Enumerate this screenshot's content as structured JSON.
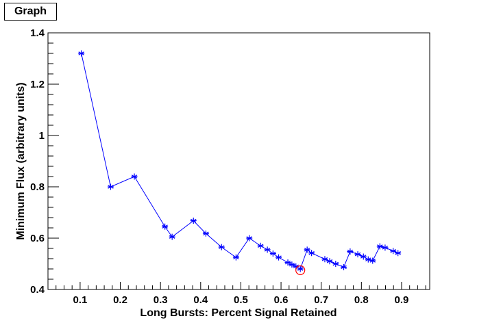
{
  "chart_data": {
    "type": "line",
    "title": "Graph",
    "xlabel": "Long Bursts: Percent Signal Retained",
    "ylabel": "Minimum Flux (arbitrary units)",
    "xlim": [
      0.02,
      0.97
    ],
    "ylim": [
      0.4,
      1.4
    ],
    "xticks": [
      "0.1",
      "0.2",
      "0.3",
      "0.4",
      "0.5",
      "0.6",
      "0.7",
      "0.8",
      "0.9"
    ],
    "yticks": [
      "0.4",
      "0.6",
      "0.8",
      "1",
      "1.2",
      "1.4"
    ],
    "grid": false,
    "series_color": "#0000ff",
    "highlight_color": "#ff0000",
    "marker": "asterisk",
    "x": [
      0.103,
      0.176,
      0.235,
      0.311,
      0.329,
      0.382,
      0.413,
      0.452,
      0.488,
      0.521,
      0.549,
      0.566,
      0.58,
      0.594,
      0.617,
      0.627,
      0.637,
      0.648,
      0.665,
      0.676,
      0.709,
      0.721,
      0.736,
      0.756,
      0.772,
      0.791,
      0.805,
      0.817,
      0.828,
      0.846,
      0.859,
      0.879,
      0.891
    ],
    "y": [
      1.32,
      0.8,
      0.84,
      0.645,
      0.605,
      0.668,
      0.618,
      0.565,
      0.525,
      0.6,
      0.57,
      0.555,
      0.54,
      0.525,
      0.505,
      0.497,
      0.49,
      0.48,
      0.555,
      0.542,
      0.518,
      0.51,
      0.5,
      0.487,
      0.548,
      0.537,
      0.528,
      0.517,
      0.512,
      0.568,
      0.563,
      0.55,
      0.542
    ],
    "highlight": {
      "x": 0.648,
      "y": 0.475
    }
  }
}
